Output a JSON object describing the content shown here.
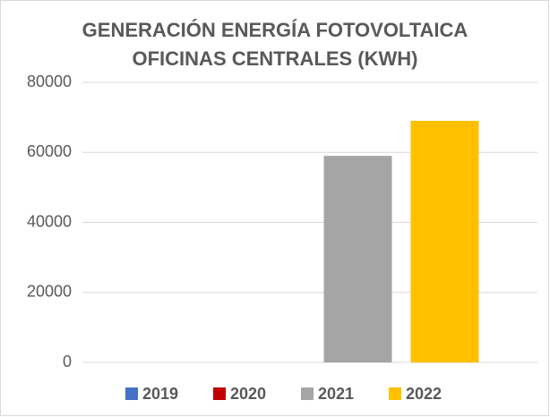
{
  "chart_data": {
    "type": "bar",
    "title": "GENERACIÓN ENERGÍA FOTOVOLTAICA OFICINAS CENTRALES (KWH)",
    "categories": [
      null
    ],
    "series": [
      {
        "name": "2019",
        "color": "#4472c4",
        "values": [
          0
        ]
      },
      {
        "name": "2020",
        "color": "#c00000",
        "values": [
          0
        ]
      },
      {
        "name": "2021",
        "color": "#a5a5a5",
        "values": [
          59000
        ]
      },
      {
        "name": "2022",
        "color": "#ffc000",
        "values": [
          69000
        ]
      }
    ],
    "ylim": [
      0,
      80000
    ],
    "yticks": [
      0,
      20000,
      40000,
      60000,
      80000
    ],
    "grid": true,
    "legend": "bottom"
  }
}
